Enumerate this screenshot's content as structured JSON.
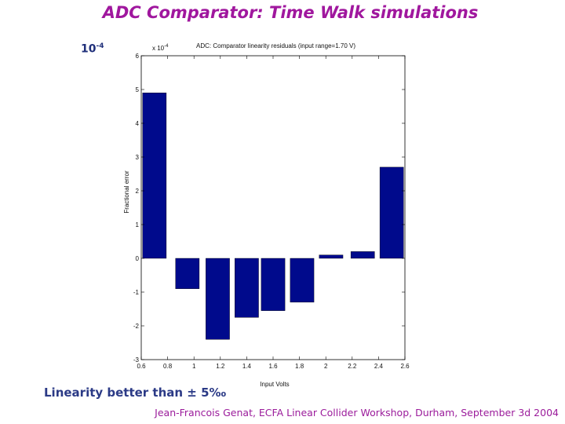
{
  "slide": {
    "title": "ADC Comparator: Time Walk simulations",
    "exponent_base": "10",
    "exponent_power": "-4",
    "note": "Linearity better than ± 5‰",
    "footer": "Jean-Francois Genat, ECFA Linear Collider Workshop, Durham, September 3d 2004"
  },
  "chart_data": {
    "type": "bar",
    "title": "ADC: Comparator linearity residuals (input range=1.70 V)",
    "xlabel": "Input Volts",
    "ylabel": "Fractional error",
    "y_multiplier_label": "x 10",
    "y_multiplier_exp": "-4",
    "xlim": [
      0.6,
      2.6
    ],
    "ylim": [
      -3,
      6
    ],
    "xticks": [
      0.6,
      0.8,
      1,
      1.2,
      1.4,
      1.6,
      1.8,
      2,
      2.2,
      2.4,
      2.6
    ],
    "xtick_labels": [
      "0.6",
      "0.8",
      "1",
      "1.2",
      "1.4",
      "1.6",
      "1.8",
      "2",
      "2.2",
      "2.4",
      "2.6"
    ],
    "yticks": [
      -3,
      -2,
      -1,
      0,
      1,
      2,
      3,
      4,
      5,
      6
    ],
    "ytick_labels": [
      "-3",
      "-2",
      "-1",
      "0",
      "1",
      "2",
      "3",
      "4",
      "5",
      "6"
    ],
    "bar_width": 0.18,
    "x": [
      0.7,
      0.95,
      1.18,
      1.4,
      1.6,
      1.82,
      2.04,
      2.28,
      2.5
    ],
    "values": [
      4.9,
      -0.9,
      -2.4,
      -1.75,
      -1.55,
      -1.3,
      0.1,
      0.2,
      2.7
    ],
    "bar_color": "#000a8c",
    "grid": false
  }
}
